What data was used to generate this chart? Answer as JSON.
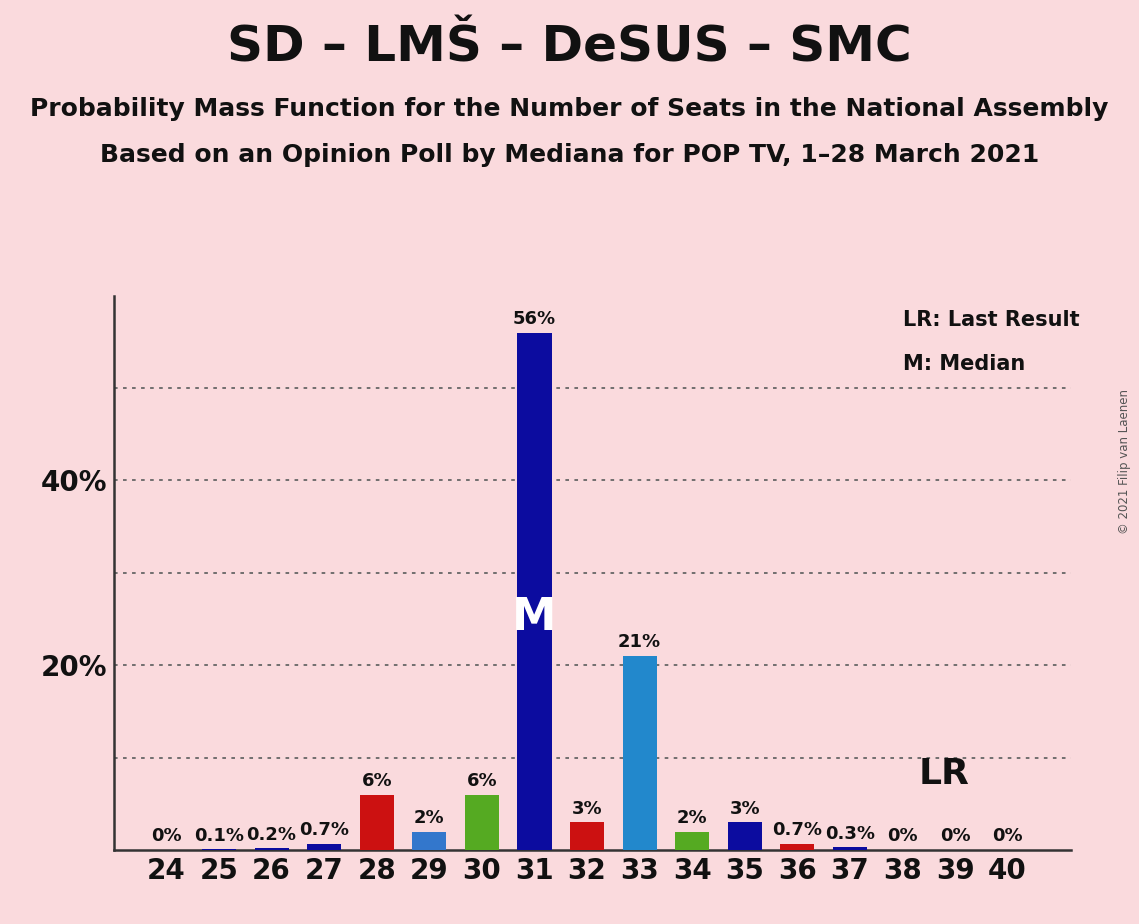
{
  "title": "SD – LMŠ – DeSUS – SMC",
  "subtitle1": "Probability Mass Function for the Number of Seats in the National Assembly",
  "subtitle2": "Based on an Opinion Poll by Mediana for POP TV, 1–28 March 2021",
  "copyright": "© 2021 Filip van Laenen",
  "seats": [
    24,
    25,
    26,
    27,
    28,
    29,
    30,
    31,
    32,
    33,
    34,
    35,
    36,
    37,
    38,
    39,
    40
  ],
  "probabilities": [
    0.0,
    0.1,
    0.2,
    0.7,
    6.0,
    2.0,
    6.0,
    56.0,
    3.0,
    21.0,
    2.0,
    3.0,
    0.7,
    0.3,
    0.0,
    0.0,
    0.0
  ],
  "bar_colors": [
    "#0c0c9f",
    "#0c0c9f",
    "#0c0c9f",
    "#0c0c9f",
    "#cc1111",
    "#3377cc",
    "#55aa22",
    "#0c0c9f",
    "#cc1111",
    "#2288cc",
    "#55aa22",
    "#0c0c9f",
    "#cc1111",
    "#0c0c9f",
    "#cc1111",
    "#3377cc",
    "#0c0c9f"
  ],
  "labels": [
    "0%",
    "0.1%",
    "0.2%",
    "0.7%",
    "6%",
    "2%",
    "6%",
    "56%",
    "3%",
    "21%",
    "2%",
    "3%",
    "0.7%",
    "0.3%",
    "0%",
    "0%",
    "0%"
  ],
  "median_seat": 31,
  "lr_seat": 37,
  "ylim_max": 60,
  "ytick_positions": [
    20,
    40
  ],
  "ytick_labels": [
    "20%",
    "40%"
  ],
  "grid_ticks": [
    10,
    20,
    30,
    40,
    50
  ],
  "background_color": "#fadadd",
  "bar_width": 0.65,
  "title_fontsize": 36,
  "subtitle_fontsize": 18,
  "label_fontsize": 13,
  "tick_fontsize": 20
}
